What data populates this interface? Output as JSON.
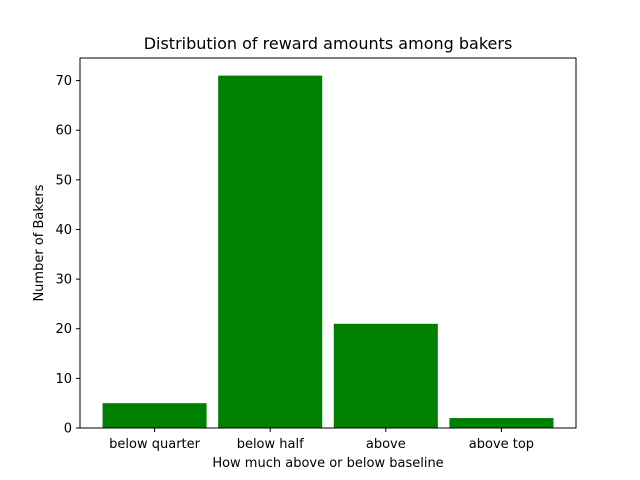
{
  "chart_data": {
    "type": "bar",
    "title": "Distribution of reward amounts among bakers",
    "xlabel": "How much above or below baseline",
    "ylabel": "Number of Bakers",
    "categories": [
      "below quarter",
      "below half",
      "above",
      "above top"
    ],
    "values": [
      5,
      71,
      21,
      2
    ],
    "ylim": [
      0,
      74.55
    ],
    "yticks": [
      0,
      10,
      20,
      30,
      40,
      50,
      60,
      70
    ],
    "bar_color": "#008000",
    "grid": false,
    "legend": "none"
  }
}
